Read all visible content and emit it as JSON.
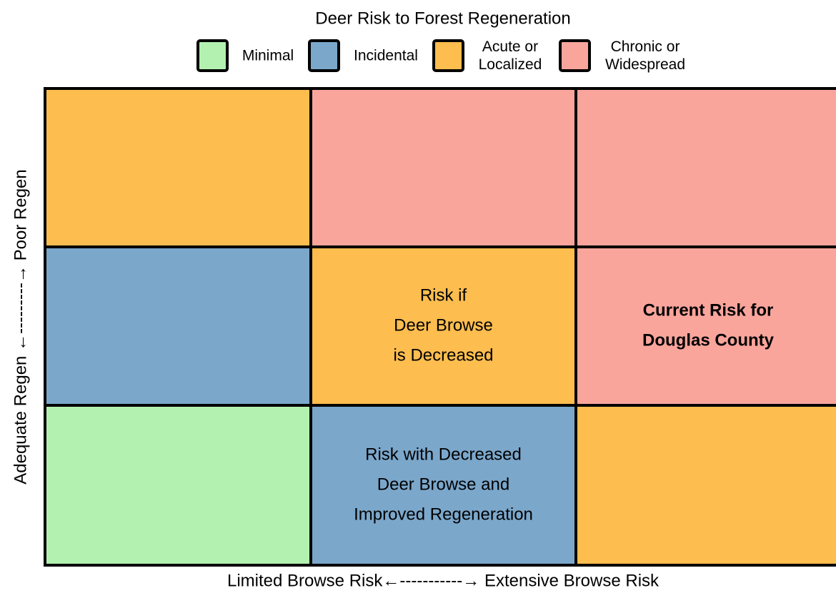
{
  "title": "Deer Risk to Forest Regeneration",
  "legend": [
    {
      "lines": [
        "Minimal"
      ],
      "color": "#b3f1b0"
    },
    {
      "lines": [
        "Incidental"
      ],
      "color": "#7ba7cb"
    },
    {
      "lines": [
        "Acute or",
        "Localized"
      ],
      "color": "#fdbd4f"
    },
    {
      "lines": [
        "Chronic or",
        "Widespread"
      ],
      "color": "#f9a59c"
    }
  ],
  "grid": {
    "rows": [
      [
        {
          "color": "#fdbd4f"
        },
        {
          "color": "#f9a59c"
        },
        {
          "color": "#f9a59c"
        }
      ],
      [
        {
          "color": "#7ba7cb"
        },
        {
          "color": "#fdbd4f",
          "lines": [
            "Risk if",
            "Deer Browse",
            "is Decreased"
          ]
        },
        {
          "color": "#f9a59c",
          "bold": true,
          "lines": [
            "Current Risk for",
            "Douglas County"
          ]
        }
      ],
      [
        {
          "color": "#b3f1b0"
        },
        {
          "color": "#7ba7cb",
          "lines": [
            "Risk with Decreased",
            "Deer Browse and",
            "Improved Regeneration"
          ]
        },
        {
          "color": "#fdbd4f"
        }
      ]
    ]
  },
  "y_axis_label": "Adequate Regen ←---------→ Poor Regen",
  "x_axis_label": "Limited Browse Risk←-----------→ Extensive Browse Risk"
}
